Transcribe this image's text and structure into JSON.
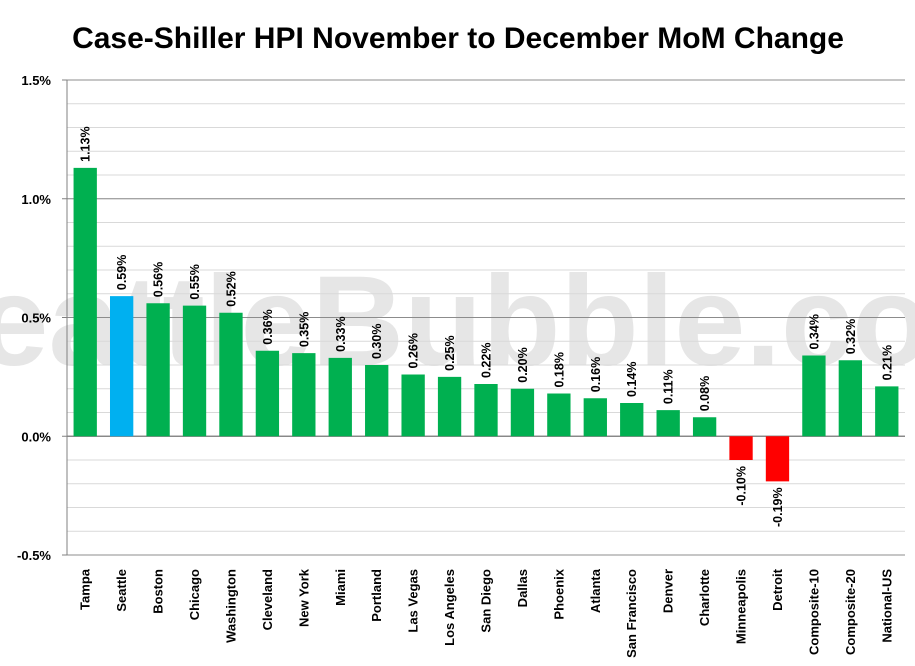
{
  "watermark": "SeattleBubble.com",
  "chart_data": {
    "type": "bar",
    "title": "Case-Shiller HPI  November to December MoM Change",
    "xlabel": "",
    "ylabel": "",
    "ylim": [
      -0.5,
      1.5
    ],
    "yticks": [
      "-0.5%",
      "0.0%",
      "0.5%",
      "1.0%",
      "1.5%"
    ],
    "ytick_values": [
      -0.5,
      0.0,
      0.5,
      1.0,
      1.5
    ],
    "minor_grid": true,
    "grid": true,
    "legend": "none",
    "categories": [
      "Tampa",
      "Seattle",
      "Boston",
      "Chicago",
      "Washington",
      "Cleveland",
      "New York",
      "Miami",
      "Portland",
      "Las Vegas",
      "Los Angeles",
      "San Diego",
      "Dallas",
      "Phoenix",
      "Atlanta",
      "San Francisco",
      "Denver",
      "Charlotte",
      "Minneapolis",
      "Detroit",
      "Composite-10",
      "Composite-20",
      "National-US"
    ],
    "values": [
      1.13,
      0.59,
      0.56,
      0.55,
      0.52,
      0.36,
      0.35,
      0.33,
      0.3,
      0.26,
      0.25,
      0.22,
      0.2,
      0.18,
      0.16,
      0.14,
      0.11,
      0.08,
      -0.1,
      -0.19,
      0.34,
      0.32,
      0.21
    ],
    "value_labels": [
      "1.13%",
      "0.59%",
      "0.56%",
      "0.55%",
      "0.52%",
      "0.36%",
      "0.35%",
      "0.33%",
      "0.30%",
      "0.26%",
      "0.25%",
      "0.22%",
      "0.20%",
      "0.18%",
      "0.16%",
      "0.14%",
      "0.11%",
      "0.08%",
      "-0.10%",
      "-0.19%",
      "0.34%",
      "0.32%",
      "0.21%"
    ],
    "highlight_category": "Seattle",
    "colors": {
      "positive": "#00b050",
      "negative": "#ff0000",
      "highlight": "#00b0f0"
    }
  }
}
